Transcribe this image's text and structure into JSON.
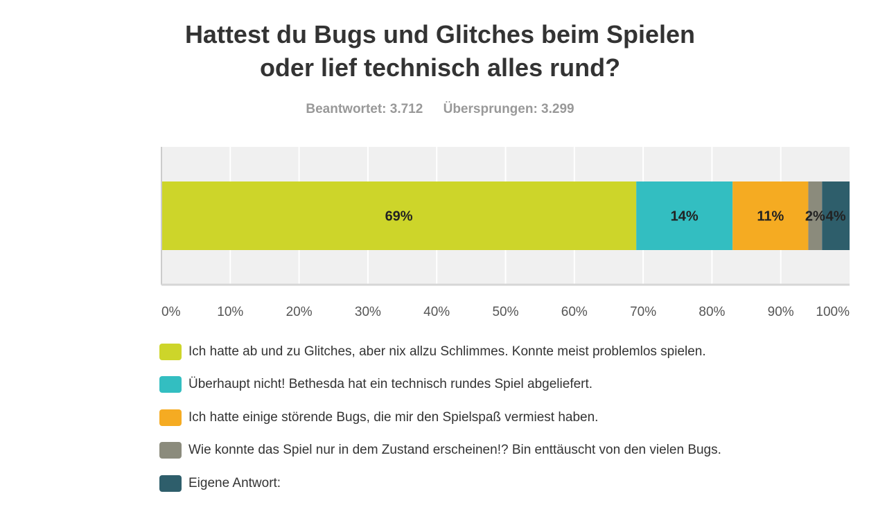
{
  "chart_data": {
    "type": "bar",
    "orientation": "horizontal-stacked",
    "title_line1": "Hattest du Bugs und Glitches beim Spielen",
    "title_line2": "oder lief technisch alles rund?",
    "answered": "Beantwortet: 3.712",
    "skipped": "Übersprungen: 3.299",
    "xlim": [
      0,
      100
    ],
    "x_ticks": [
      "0%",
      "10%",
      "20%",
      "30%",
      "40%",
      "50%",
      "60%",
      "70%",
      "80%",
      "90%",
      "100%"
    ],
    "grid": true,
    "legend_position": "bottom",
    "series": [
      {
        "name": "Ich hatte ab und zu Glitches, aber nix allzu Schlimmes. Konnte meist problemlos spielen.",
        "value": 69,
        "label": "69%",
        "color": "#cdd52a"
      },
      {
        "name": "Überhaupt nicht! Bethesda hat ein technisch rundes Spiel abgeliefert.",
        "value": 14,
        "label": "14%",
        "color": "#33bec1"
      },
      {
        "name": "Ich hatte einige störende Bugs, die mir den Spielspaß vermiest haben.",
        "value": 11,
        "label": "11%",
        "color": "#f5ab22"
      },
      {
        "name": "Wie konnte das Spiel nur in dem Zustand erscheinen!? Bin enttäuscht von den vielen Bugs.",
        "value": 2,
        "label": "2%",
        "color": "#8b8b7c"
      },
      {
        "name": "Eigene Antwort:",
        "value": 4,
        "label": "4%",
        "color": "#2e5e6b"
      }
    ]
  }
}
